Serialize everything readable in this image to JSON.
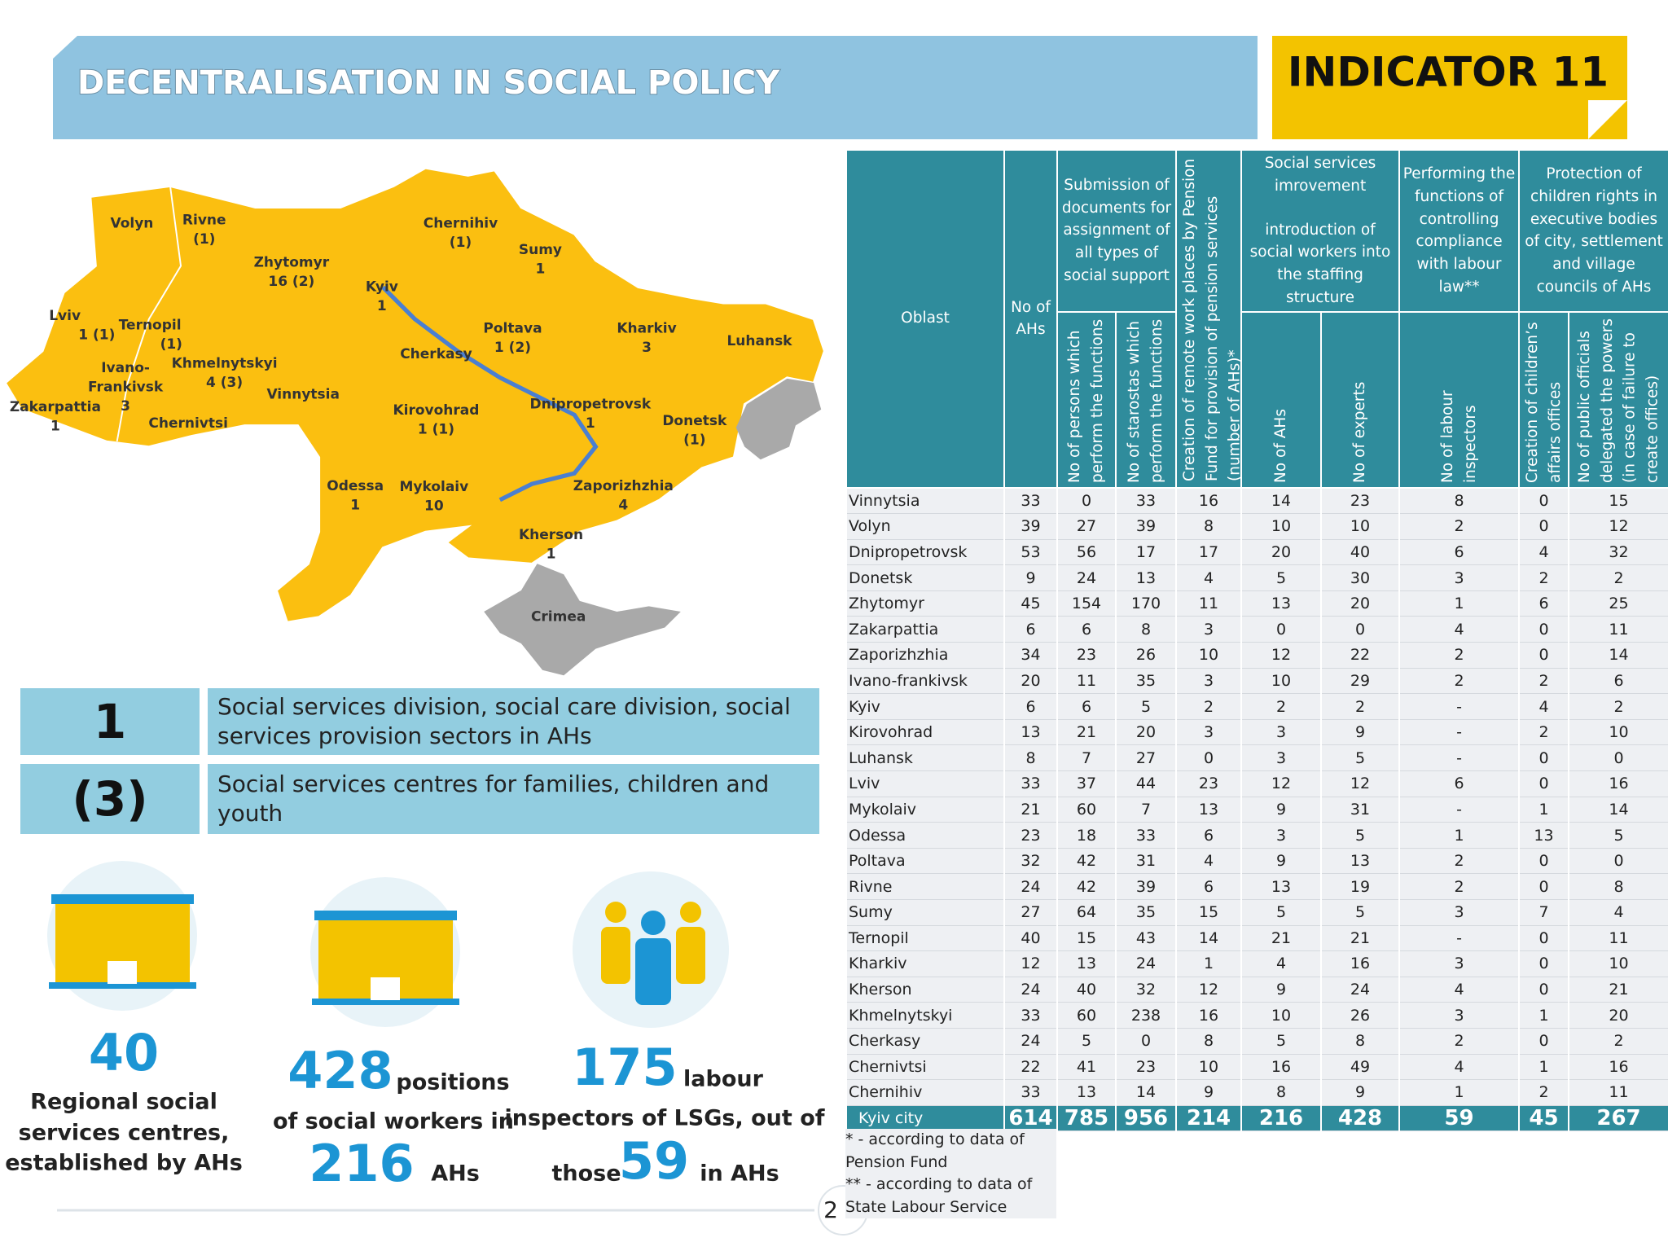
{
  "header": {
    "title": "DECENTRALISATION IN SOCIAL POLICY",
    "indicator": "INDICATOR 11"
  },
  "map": {
    "labels": [
      [
        "Volyn"
      ],
      [
        "Rivne",
        "(1)"
      ],
      [
        "Zhytomyr",
        "16 (2)"
      ],
      [
        "Kyiv",
        "1"
      ],
      [
        "Chernihiv",
        "(1)"
      ],
      [
        "Sumy",
        "1"
      ],
      [
        "Kharkiv",
        "3"
      ],
      [
        "Luhansk"
      ],
      [
        "Poltava",
        "1 (2)"
      ],
      [
        "Cherkasy"
      ],
      [
        "Lviv",
        "1 (1)"
      ],
      [
        "Ternopil",
        "(1)"
      ],
      [
        "Khmelnytskyi",
        "4 (3)"
      ],
      [
        "Ivano-",
        "Frankivsk",
        "3"
      ],
      [
        "Zakarpattia",
        "1"
      ],
      [
        "Chernivtsi"
      ],
      [
        "Vinnytsia"
      ],
      [
        "Kirovohrad",
        "1 (1)"
      ],
      [
        "Dnipropetrovsk",
        "1"
      ],
      [
        "Donetsk",
        "(1)"
      ],
      [
        "Odessa",
        "1"
      ],
      [
        "Mykolaiv",
        "10"
      ],
      [
        "Zaporizhzhia",
        "4"
      ],
      [
        "Kherson",
        "1"
      ],
      [
        "Crimea"
      ]
    ]
  },
  "legend": [
    {
      "symbol": "1",
      "text": "Social services division, social care division, social services provision sectors in AHs"
    },
    {
      "symbol": "(3)",
      "text": "Social services centres for families, children and youth"
    }
  ],
  "stats": {
    "centres": {
      "number": "40",
      "lines": [
        "Regional social",
        "services centres,",
        "established by AHs"
      ]
    },
    "workers": {
      "number": "428",
      "unit": "positions",
      "middle": "of social workers in",
      "number2": "216",
      "unit2": "AHs"
    },
    "inspectors": {
      "number": "175",
      "unit": "labour",
      "middle": "inspectors of LSGs, out of",
      "prefix": "those",
      "number2": "59",
      "unit2": "in AHs"
    }
  },
  "table": {
    "head_top": [
      "Oblast",
      "No of AHs",
      "Submission of documents for assignment of all types of social support",
      "Creation of remote work places by Pension Fund for provision of pension services (number of AHs)*",
      "Social services imrovement",
      "Performing the functions of controlling compliance with labour law**",
      "Protection of children rights in executive bodies of city, settlement and village councils of AHs"
    ],
    "head_top_extra": "introduction of social workers into the staffing structure",
    "head_sub": [
      "No of persons which perform the functions",
      "No of starostas  which perform the functions",
      "No of AHs",
      "No of experts",
      "No of labour inspectors",
      "Creation of children’s affairs offices",
      "No of public officials delegated the powers (in case of failure to create offices)"
    ],
    "rows": [
      [
        "Vinnytsia",
        33,
        0,
        33,
        16,
        14,
        23,
        8,
        0,
        15
      ],
      [
        "Volyn",
        39,
        27,
        39,
        8,
        10,
        10,
        2,
        0,
        12
      ],
      [
        "Dnipropetrovsk",
        53,
        56,
        17,
        17,
        20,
        40,
        6,
        4,
        32
      ],
      [
        "Donetsk",
        9,
        24,
        13,
        4,
        5,
        30,
        3,
        2,
        2
      ],
      [
        "Zhytomyr",
        45,
        154,
        170,
        11,
        13,
        20,
        1,
        6,
        25
      ],
      [
        "Zakarpattia",
        6,
        6,
        8,
        3,
        0,
        0,
        4,
        0,
        11
      ],
      [
        "Zaporizhzhia",
        34,
        23,
        26,
        10,
        12,
        22,
        2,
        0,
        14
      ],
      [
        "Ivano-frankivsk",
        20,
        11,
        35,
        3,
        10,
        29,
        2,
        2,
        6
      ],
      [
        "Kyiv",
        6,
        6,
        5,
        2,
        2,
        2,
        "-",
        4,
        2
      ],
      [
        "Kirovohrad",
        13,
        21,
        20,
        3,
        3,
        9,
        "-",
        2,
        10
      ],
      [
        "Luhansk",
        8,
        7,
        27,
        0,
        3,
        5,
        "-",
        0,
        0
      ],
      [
        "Lviv",
        33,
        37,
        44,
        23,
        12,
        12,
        6,
        0,
        16
      ],
      [
        "Mykolaiv",
        21,
        60,
        7,
        13,
        9,
        31,
        "-",
        1,
        14
      ],
      [
        "Odessa",
        23,
        18,
        33,
        6,
        3,
        5,
        1,
        13,
        5
      ],
      [
        "Poltava",
        32,
        42,
        31,
        4,
        9,
        13,
        2,
        0,
        0
      ],
      [
        "Rivne",
        24,
        42,
        39,
        6,
        13,
        19,
        2,
        0,
        8
      ],
      [
        "Sumy",
        27,
        64,
        35,
        15,
        5,
        5,
        3,
        7,
        4
      ],
      [
        "Ternopil",
        40,
        15,
        43,
        14,
        21,
        21,
        "-",
        0,
        11
      ],
      [
        "Kharkiv",
        12,
        13,
        24,
        1,
        4,
        16,
        3,
        0,
        10
      ],
      [
        "Kherson",
        24,
        40,
        32,
        12,
        9,
        24,
        4,
        0,
        21
      ],
      [
        "Khmelnytskyi",
        33,
        60,
        238,
        16,
        10,
        26,
        3,
        1,
        20
      ],
      [
        "Cherkasy",
        24,
        5,
        0,
        8,
        5,
        8,
        2,
        0,
        2
      ],
      [
        "Chernivtsi",
        22,
        41,
        23,
        10,
        16,
        49,
        4,
        1,
        16
      ],
      [
        "Chernihiv",
        33,
        13,
        14,
        9,
        8,
        9,
        1,
        2,
        11
      ],
      [
        "Kyiv city",
        614,
        785,
        956,
        214,
        216,
        428,
        59,
        45,
        267
      ]
    ],
    "footnotes": [
      "* - according to data of Pension Fund",
      "** - according to data of State Labour Service"
    ]
  },
  "page_number": "2"
}
